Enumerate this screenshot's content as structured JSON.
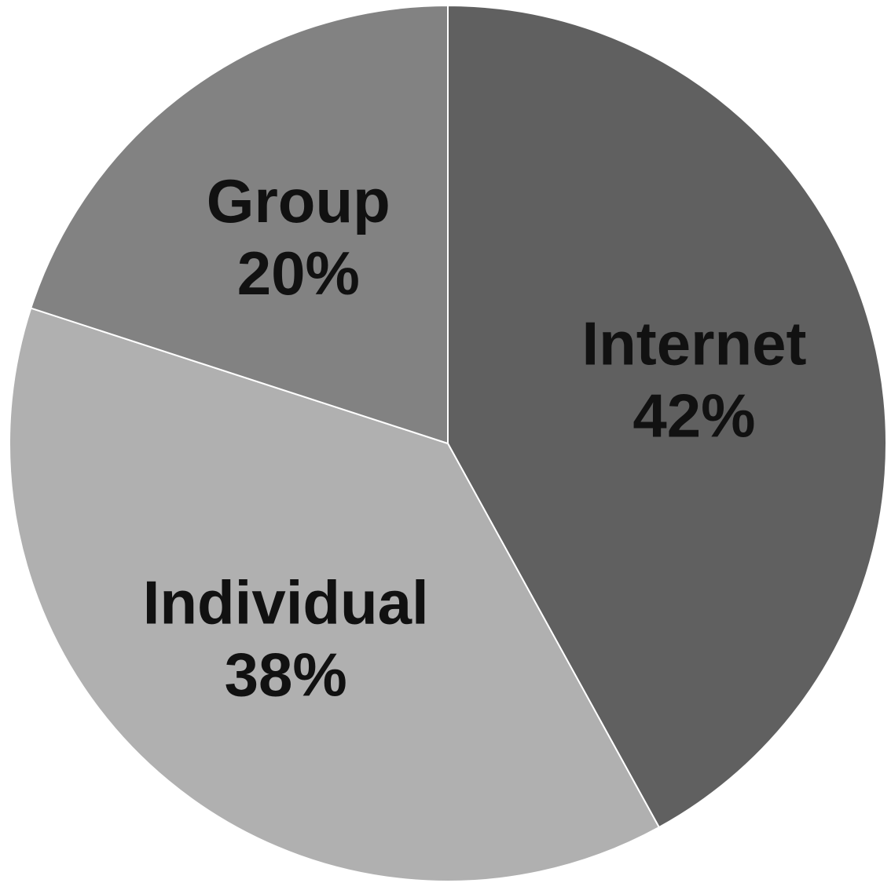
{
  "chart_data": {
    "type": "pie",
    "title": "",
    "start_angle_deg": 0,
    "direction": "clockwise",
    "slices": [
      {
        "label": "Internet",
        "value": 42,
        "value_label": "42%",
        "color": "#606060"
      },
      {
        "label": "Individual",
        "value": 38,
        "value_label": "38%",
        "color": "#b0b0b0"
      },
      {
        "label": "Group",
        "value": 20,
        "value_label": "20%",
        "color": "#828282"
      }
    ],
    "legend": "none",
    "data_labels": "inside"
  }
}
